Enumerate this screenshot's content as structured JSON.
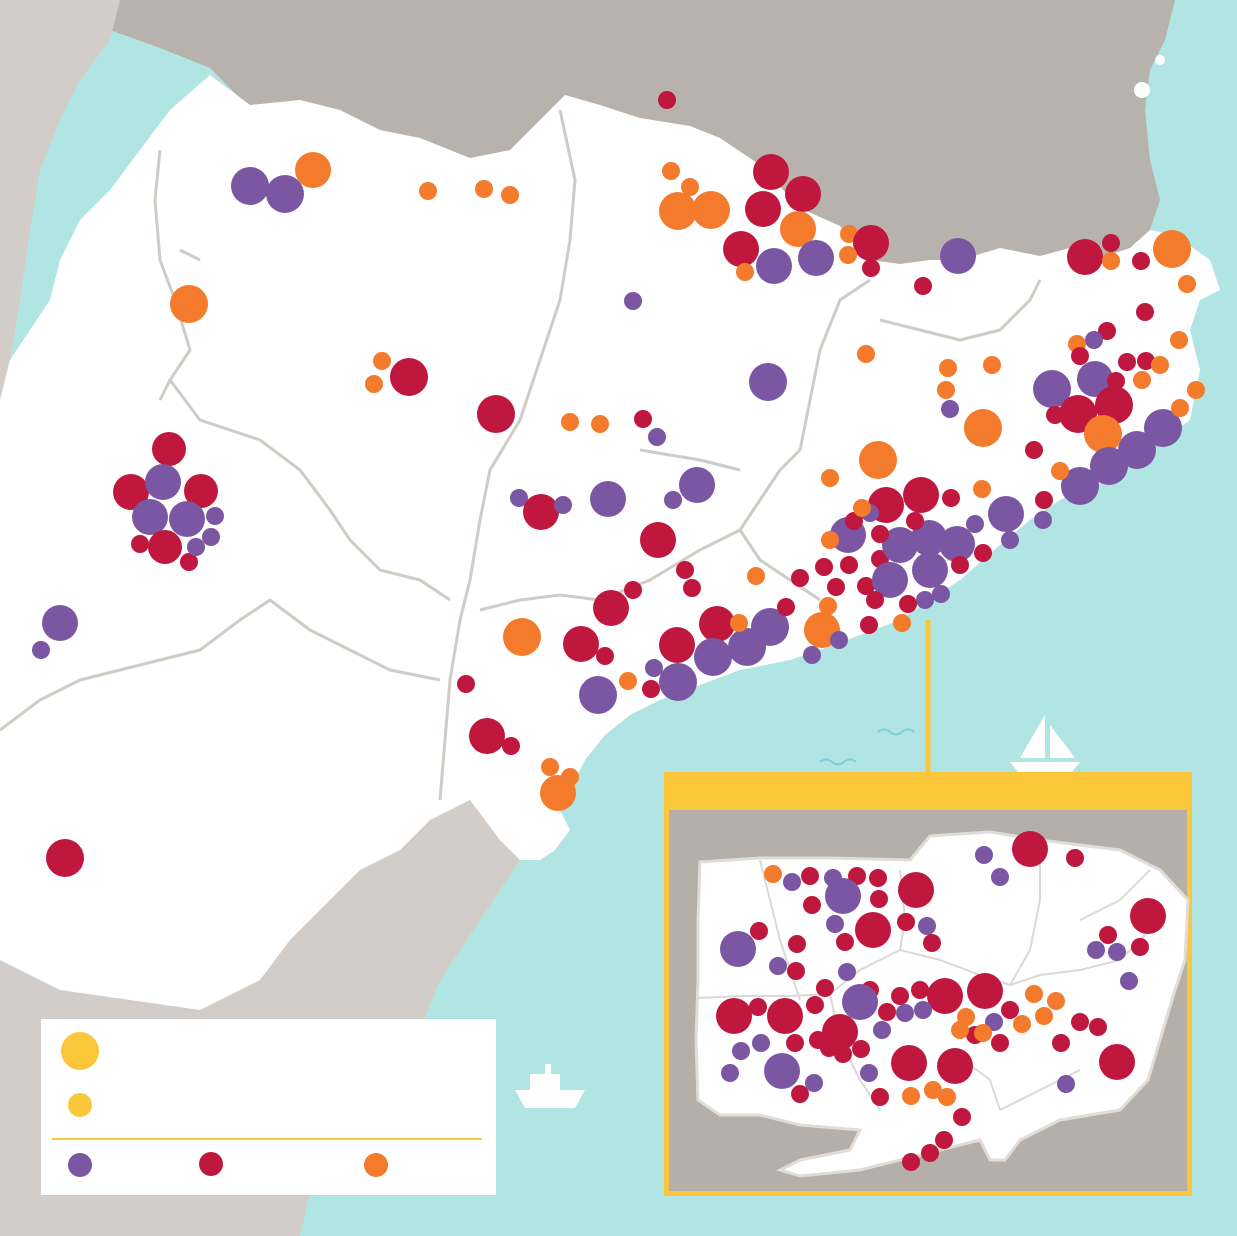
{
  "colors": {
    "sea": "#b1e5e4",
    "land": "#ffffff",
    "neighbor": "#b8b2ac",
    "neighbor_light": "#d2cdc8",
    "border": "#cfcbc5",
    "purple": "#7b57a3",
    "crimson": "#c0173f",
    "orange": "#f47a2c",
    "gold": "#fcc63a",
    "inset_bg": "#b5afaa"
  },
  "icons": {
    "sailboat": "sailboat-icon",
    "ship": "ship-icon",
    "waves": "wave-icon"
  },
  "legend": {
    "size_large_label": "",
    "size_small_label": "",
    "cat_purple_label": "",
    "cat_crimson_label": "",
    "cat_orange_label": ""
  },
  "inset": {
    "title": ""
  }
}
